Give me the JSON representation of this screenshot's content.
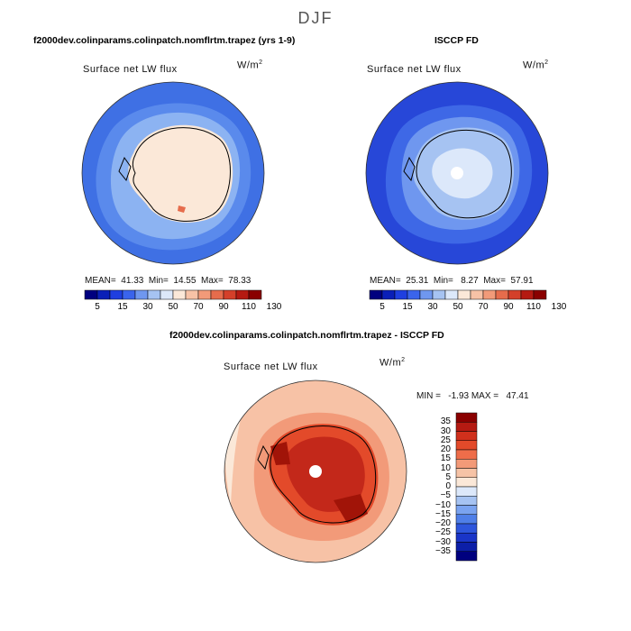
{
  "header": {
    "season": "DJF",
    "left_title": "f2000dev.colinparams.colinpatch.nomflrtm.trapez (yrs 1-9)",
    "right_title": "ISCCP FD",
    "bottom_title": "f2000dev.colinparams.colinpatch.nomflrtm.trapez - ISCCP FD"
  },
  "panels": [
    {
      "variable": "Surface net LW flux",
      "units_base": "W/m",
      "units_exp": "2",
      "stats": {
        "mean_label": "MEAN=",
        "mean": "41.33",
        "min_label": "Min=",
        "min": "14.55",
        "max_label": "Max=",
        "max": "78.33"
      }
    },
    {
      "variable": "Surface net LW flux",
      "units_base": "W/m",
      "units_exp": "2",
      "stats": {
        "mean_label": "MEAN=",
        "mean": "25.31",
        "min_label": "Min=",
        "min": "8.27",
        "max_label": "Max=",
        "max": "57.91"
      }
    },
    {
      "variable": "Surface net LW flux",
      "units_base": "W/m",
      "units_exp": "2",
      "stats_text": "MIN =   -1.93 MAX =   47.41"
    }
  ],
  "colorbar_abs": {
    "colors": [
      "#00007f",
      "#0a1fb8",
      "#1f3fe0",
      "#3a64ec",
      "#6f97ef",
      "#a6c3f2",
      "#dce8fa",
      "#fbe8d8",
      "#f7c2a6",
      "#f29a79",
      "#e66c4c",
      "#d4402a",
      "#b51a12",
      "#8a0000"
    ],
    "labels": [
      "5",
      "15",
      "30",
      "50",
      "70",
      "90",
      "110",
      "130"
    ]
  },
  "colorbar_diff": {
    "colors": [
      "#8a0000",
      "#b51a12",
      "#d0301c",
      "#e34a2a",
      "#ee6d4a",
      "#f39a78",
      "#f6c3a6",
      "#fbe8d8",
      "#dce8fa",
      "#a6c3f2",
      "#7aa3f0",
      "#4f7fe8",
      "#2e56dc",
      "#1a35c8",
      "#0c1fa8",
      "#00007f"
    ],
    "labels": [
      "35",
      "30",
      "25",
      "20",
      "15",
      "10",
      "5",
      "0",
      "−5",
      "−10",
      "−15",
      "−20",
      "−25",
      "−30",
      "−35"
    ]
  },
  "maps": {
    "map1": {
      "ocean": "#3f70e4",
      "mid": "#5a8aec",
      "shelf": "#8cb3f2",
      "land": "#fbe8d8",
      "land_edge": "#dce8fa",
      "hot": "#e66c4c"
    },
    "map2": {
      "ocean": "#2747d8",
      "mid": "#3e68e6",
      "shelf": "#6f97ef",
      "land": "#a6c3f2",
      "land_hi": "#dce8fa",
      "pole": "#ffffff"
    },
    "map3": {
      "ocean": "#f7c2a6",
      "far": "#fbe8d8",
      "mid": "#f29a79",
      "land": "#e34a2a",
      "land_hi": "#c3281a",
      "deep": "#a11408",
      "pole": "#ffffff"
    }
  }
}
